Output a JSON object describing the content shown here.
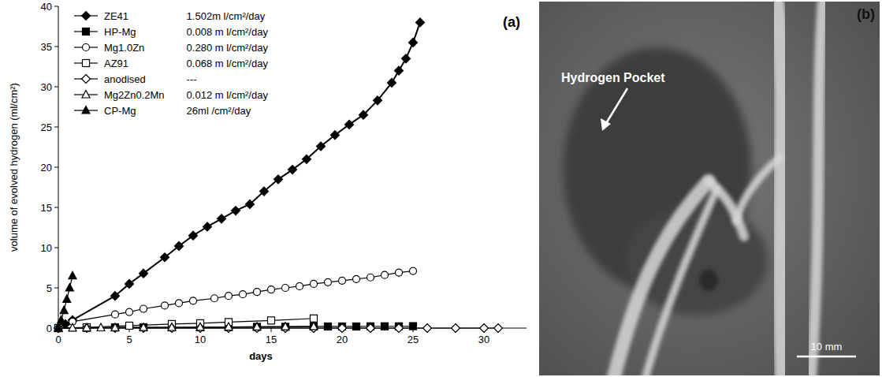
{
  "chart_data": {
    "type": "line",
    "panel": "(a)",
    "x_label": "days",
    "y_label": "volume of evolved hydrogen (ml/cm²)",
    "xlim": [
      0,
      33
    ],
    "xticks": [
      0,
      5,
      10,
      15,
      20,
      25,
      30
    ],
    "ylim": [
      0,
      40
    ],
    "yticks": [
      0,
      5,
      10,
      15,
      20,
      25,
      30,
      35,
      40
    ],
    "grid": false,
    "legend": "upper left",
    "series": [
      {
        "name": "ZE41",
        "rate": "1.502m l/cm²/day",
        "color": "#000000",
        "marker": "diamond",
        "line_style": "solid",
        "x": [
          0,
          0.5,
          1,
          4,
          5,
          6,
          7.5,
          8.5,
          9.5,
          10.5,
          11.5,
          12.5,
          13.5,
          14.5,
          15.5,
          16.5,
          17.5,
          18.5,
          19.5,
          20.5,
          21.5,
          22.5,
          23.5,
          24,
          24.5,
          25,
          25.5
        ],
        "values": [
          0,
          0.5,
          1,
          4,
          5.5,
          6.8,
          8.8,
          10.2,
          11.5,
          12.6,
          13.6,
          14.6,
          15.4,
          17,
          18.5,
          19.7,
          21,
          22.6,
          24,
          25.3,
          26.5,
          28.3,
          30.5,
          32,
          33.5,
          35.5,
          38
        ]
      },
      {
        "name": "HP-Mg",
        "rate": "0.008 m l/cm²/day",
        "color": "#000000",
        "marker": "square",
        "line_style": "solid",
        "x": [
          0,
          2,
          4,
          6,
          8,
          10,
          12,
          14,
          16,
          18,
          19,
          20,
          21,
          22,
          23,
          24,
          25
        ],
        "values": [
          0,
          0.05,
          0.08,
          0.1,
          0.1,
          0.12,
          0.14,
          0.15,
          0.16,
          0.2,
          0.2,
          0.2,
          0.2,
          0.22,
          0.22,
          0.22,
          0.24
        ]
      },
      {
        "name": "Mg1.0Zn",
        "rate": "0.280 m l/cm²/day",
        "color": "#000000",
        "marker": "circle-open",
        "line_style": "solid",
        "x": [
          0,
          1,
          4,
          5,
          6,
          7.5,
          8.5,
          9.5,
          11,
          12,
          13,
          14,
          15,
          16,
          17,
          18,
          19,
          20,
          21,
          22,
          23,
          24,
          25
        ],
        "values": [
          0,
          0.8,
          1.7,
          2,
          2.4,
          2.8,
          3.1,
          3.4,
          3.7,
          4,
          4.2,
          4.5,
          4.8,
          5,
          5.2,
          5.5,
          5.7,
          5.9,
          6.1,
          6.3,
          6.6,
          6.9,
          7.1
        ]
      },
      {
        "name": "AZ91",
        "rate": "0.068 m l/cm²/day",
        "color": "#000000",
        "marker": "square-open",
        "line_style": "solid",
        "x": [
          0,
          2,
          5,
          8,
          10,
          12,
          15,
          18
        ],
        "values": [
          0,
          0.1,
          0.3,
          0.5,
          0.6,
          0.75,
          0.95,
          1.2
        ]
      },
      {
        "name": "anodised",
        "rate": "---",
        "color": "#000000",
        "marker": "diamond-open",
        "line_style": "solid",
        "x": [
          0,
          2,
          4,
          6,
          8,
          10,
          12,
          14,
          16,
          18,
          20,
          22,
          24,
          26,
          28,
          30,
          31
        ],
        "values": [
          0,
          0,
          0,
          0,
          0,
          0,
          0,
          0,
          0,
          0,
          0,
          0,
          0,
          0,
          0,
          0,
          0
        ]
      },
      {
        "name": "Mg2Zn0.2Mn",
        "rate": "0.012 m l/cm²/day",
        "color": "#000000",
        "marker": "triangle-open",
        "line_style": "solid",
        "x": [
          0,
          1,
          2,
          3,
          4,
          6,
          8,
          10,
          12,
          14,
          16,
          18
        ],
        "values": [
          0,
          0.02,
          0.04,
          0.05,
          0.06,
          0.08,
          0.1,
          0.12,
          0.14,
          0.16,
          0.18,
          0.2
        ]
      },
      {
        "name": "CP-Mg",
        "rate": "26ml /cm²/day",
        "color": "#000000",
        "marker": "triangle",
        "line_style": "solid",
        "x": [
          0,
          0.2,
          0.4,
          0.6,
          0.8,
          1
        ],
        "values": [
          0,
          1,
          2.2,
          3.6,
          5,
          6.5
        ]
      }
    ]
  },
  "image_panel": {
    "label": "(b)",
    "annotation": "Hydrogen Pocket",
    "scale_bar": "10 mm"
  }
}
